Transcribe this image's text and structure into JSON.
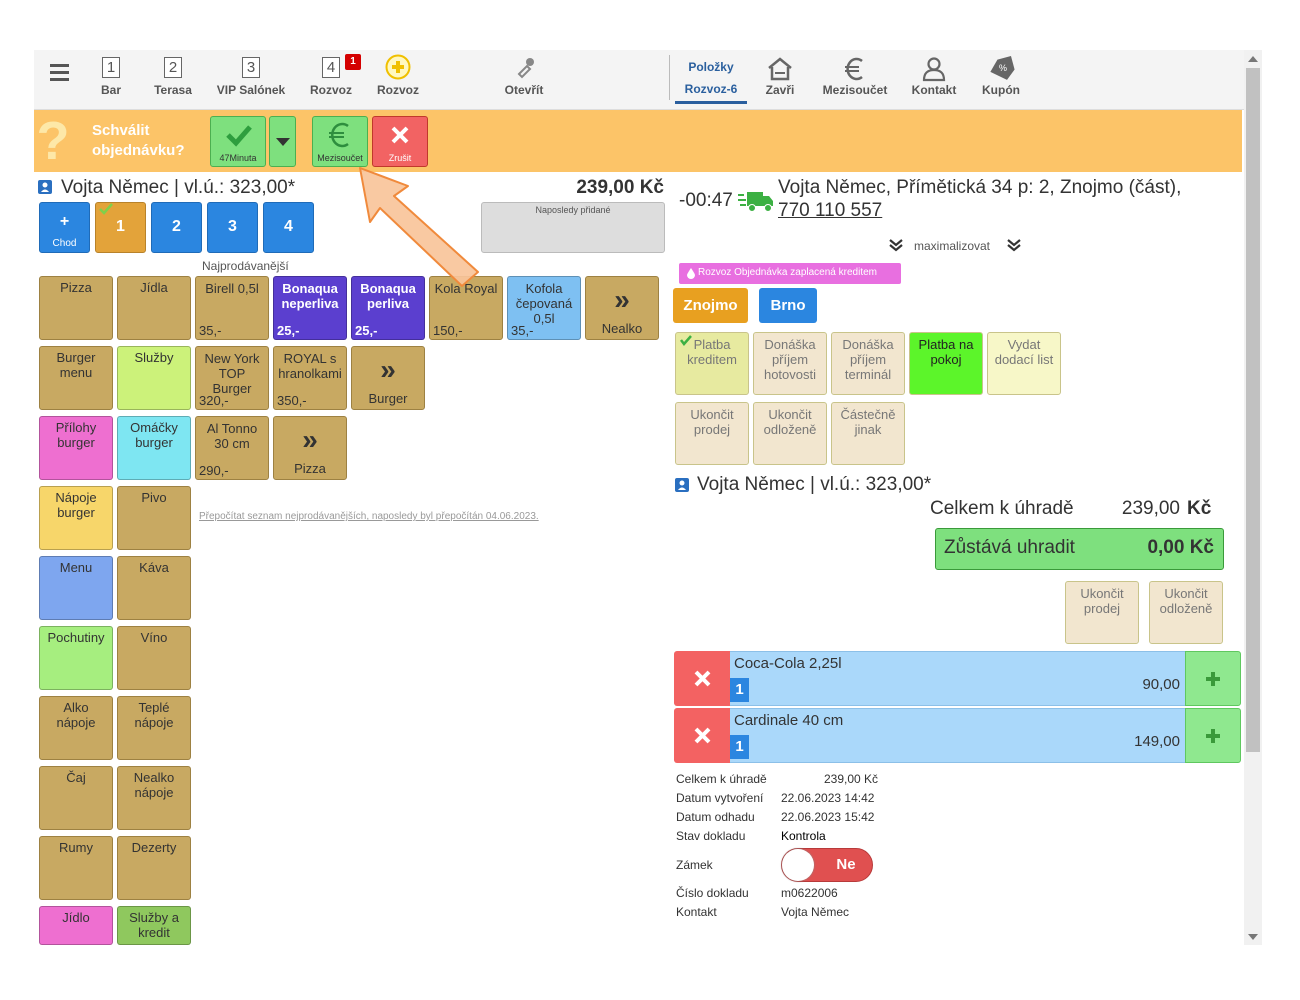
{
  "nav": {
    "tabs": [
      {
        "number": "1",
        "label": "Bar"
      },
      {
        "number": "2",
        "label": "Terasa"
      },
      {
        "number": "3",
        "label": "VIP Salónek"
      },
      {
        "number": "4",
        "badge": "1",
        "label": "Rozvoz"
      },
      {
        "label": "Rozvoz"
      },
      {
        "label": "Otevřít"
      }
    ],
    "right_tabs": [
      {
        "label": "Položky",
        "sublabel": "Rozvoz-6"
      },
      {
        "label": "Zavři"
      },
      {
        "label": "Mezisoučet"
      },
      {
        "label": "Kontakt"
      },
      {
        "label": "Kupón"
      }
    ]
  },
  "approval": {
    "icon": "?",
    "title": "Schválit objednávku?",
    "buttons": [
      {
        "label": "47Minuta"
      },
      {
        "label": "Mezisoučet"
      },
      {
        "label": "Zrušit"
      }
    ]
  },
  "order_panel": {
    "customer": "Vojta Němec | vl.ú.: 323,00*",
    "total": "239,00 Kč",
    "courses": [
      {
        "icon": "+",
        "label": "Chod"
      },
      {
        "label": "1"
      },
      {
        "label": "2"
      },
      {
        "label": "3"
      },
      {
        "label": "4"
      }
    ],
    "recent_title": "Naposledy přidané",
    "bestsellers_title": "Najprodávanější",
    "categories": [
      "Pizza",
      "Jídla",
      "Burger menu",
      "Služby",
      "Přílohy burger",
      "Omáčky burger",
      "Nápoje burger",
      "Pivo",
      "Menu",
      "Káva",
      "Pochutiny",
      "Víno",
      "Alko nápoje",
      "Teplé nápoje",
      "Čaj",
      "Nealko nápoje",
      "Rumy",
      "Dezerty",
      "Jídlo",
      "Služby a kredit"
    ],
    "product_rows": [
      [
        {
          "name": "Birell 0,5l",
          "price": "35,-"
        },
        {
          "name": "Bonaqua neperliva",
          "price": "25,-"
        },
        {
          "name": "Bonaqua perliva",
          "price": "25,-"
        },
        {
          "name": "Kola Royal",
          "price": "150,-"
        },
        {
          "name": "Kofola čepovaná 0,5l",
          "price": "35,-"
        },
        {
          "more": "»",
          "label": "Nealko"
        }
      ],
      [
        {
          "name": "New York TOP Burger",
          "price": "320,-"
        },
        {
          "name": "ROYAL s hranolkami",
          "price": "350,-"
        },
        {
          "more": "»",
          "label": "Burger"
        }
      ],
      [
        {
          "name": "Al Tonno 30 cm",
          "price": "290,-"
        },
        {
          "more": "»",
          "label": "Pizza"
        }
      ]
    ],
    "recalculate_link": "Přepočítat seznam nejprodávanějších, naposledy byl přepočítán 04.06.2023."
  },
  "delivery": {
    "timer": "-00:47",
    "address": "Vojta Němec, Přímětická 34 p: 2, Znojmo (část),",
    "phone": "770 110 557",
    "maximize": "maximalizovat",
    "badge": "Rozvoz Objednávka zaplacená kreditem",
    "zones": [
      "Znojmo",
      "Brno"
    ],
    "actions": [
      [
        "Platba kreditem",
        "Donáška příjem hotovosti",
        "Donáška příjem terminál",
        "Platba na pokoj",
        "Vydat dodací list"
      ],
      [
        "Ukončit prodej",
        "Ukončit odloženě",
        "Částečně jinak"
      ]
    ]
  },
  "summary": {
    "customer": "Vojta Němec | vl.ú.: 323,00*",
    "total_label": "Celkem k úhradě",
    "total_amount": "239,00",
    "currency": "Kč",
    "remaining_label": "Zůstává uhradit",
    "remaining": "0,00 Kč",
    "buttons": [
      "Ukončit prodej",
      "Ukončit odloženě"
    ]
  },
  "items": [
    {
      "name": "Coca-Cola 2,25l",
      "qty": "1",
      "price": "90,00"
    },
    {
      "name": "Cardinale 40 cm",
      "qty": "1",
      "price": "149,00"
    }
  ],
  "details": [
    {
      "label": "Celkem k úhradě",
      "value": "239,00 Kč"
    },
    {
      "label": "Datum vytvoření",
      "value": "22.06.2023 14:42"
    },
    {
      "label": "Datum odhadu",
      "value": "22.06.2023 15:42"
    },
    {
      "label": "Stav dokladu",
      "value": "Kontrola"
    },
    {
      "label": "Zámek",
      "value": "Ne"
    },
    {
      "label": "Číslo dokladu",
      "value": "m0622006"
    },
    {
      "label": "Kontakt",
      "value": "Vojta Němec"
    }
  ]
}
